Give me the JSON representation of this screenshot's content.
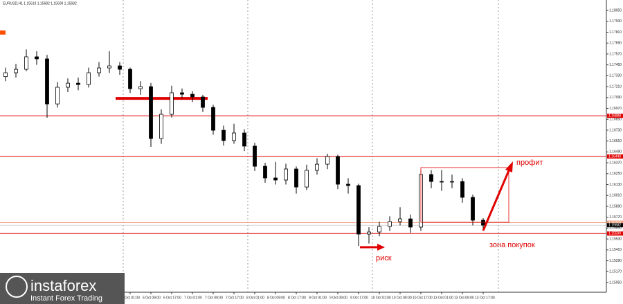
{
  "chart_data": {
    "type": "candlestick",
    "title": "EURUSD,H1  1.15619 1.15682 1.15609 1.15682",
    "candles": [
      [
        1.1732,
        1.1742,
        1.1727,
        1.17363
      ],
      [
        1.17363,
        1.1746,
        1.1731,
        1.17401
      ],
      [
        1.17401,
        1.1762,
        1.1738,
        1.17539
      ],
      [
        1.17539,
        1.176,
        1.1745,
        1.17516
      ],
      [
        1.17516,
        1.1756,
        1.16867,
        1.17019
      ],
      [
        1.17019,
        1.1726,
        1.1698,
        1.17203
      ],
      [
        1.17203,
        1.173,
        1.1715,
        1.17248
      ],
      [
        1.17248,
        1.1731,
        1.1717,
        1.17233
      ],
      [
        1.17233,
        1.1742,
        1.172,
        1.17363
      ],
      [
        1.17363,
        1.1748,
        1.1732,
        1.17416
      ],
      [
        1.17416,
        1.176,
        1.1736,
        1.17439
      ],
      [
        1.17439,
        1.1748,
        1.1734,
        1.17401
      ],
      [
        1.17401,
        1.1742,
        1.1714,
        1.17187
      ],
      [
        1.17187,
        1.1727,
        1.1712,
        1.1721
      ],
      [
        1.1721,
        1.1725,
        1.16546,
        1.16638
      ],
      [
        1.16638,
        1.1696,
        1.1658,
        1.16905
      ],
      [
        1.16905,
        1.1722,
        1.1687,
        1.17142
      ],
      [
        1.17142,
        1.1719,
        1.1708,
        1.17126
      ],
      [
        1.17126,
        1.1716,
        1.1704,
        1.17096
      ],
      [
        1.17096,
        1.1712,
        1.1693,
        1.16981
      ],
      [
        1.16981,
        1.1701,
        1.1668,
        1.16729
      ],
      [
        1.16729,
        1.1678,
        1.1656,
        1.16615
      ],
      [
        1.16615,
        1.168,
        1.1658,
        1.16699
      ],
      [
        1.16699,
        1.1674,
        1.165,
        1.16554
      ],
      [
        1.16554,
        1.1659,
        1.1628,
        1.16332
      ],
      [
        1.16332,
        1.1637,
        1.1615,
        1.16203
      ],
      [
        1.16203,
        1.1638,
        1.1613,
        1.1618
      ],
      [
        1.1618,
        1.1636,
        1.1613,
        1.16302
      ],
      [
        1.16302,
        1.1633,
        1.1603,
        1.16103
      ],
      [
        1.16103,
        1.1635,
        1.1607,
        1.16287
      ],
      [
        1.16287,
        1.1642,
        1.1624,
        1.16355
      ],
      [
        1.16355,
        1.1647,
        1.163,
        1.16439
      ],
      [
        1.16439,
        1.1646,
        1.1608,
        1.16134
      ],
      [
        1.16134,
        1.162,
        1.1603,
        1.16119
      ],
      [
        1.16119,
        1.1614,
        1.15454,
        1.15584
      ],
      [
        1.15584,
        1.1566,
        1.1548,
        1.15607
      ],
      [
        1.15607,
        1.1572,
        1.1556,
        1.15668
      ],
      [
        1.15668,
        1.1578,
        1.1562,
        1.15722
      ],
      [
        1.15722,
        1.1588,
        1.1568,
        1.15752
      ],
      [
        1.15752,
        1.158,
        1.156,
        1.15661
      ],
      [
        1.15661,
        1.16294,
        1.1562,
        1.16241
      ],
      [
        1.16241,
        1.1629,
        1.1609,
        1.16164
      ],
      [
        1.16164,
        1.1629,
        1.1606,
        1.16157
      ],
      [
        1.16157,
        1.1624,
        1.1609,
        1.16164
      ],
      [
        1.16164,
        1.162,
        1.1593,
        1.15989
      ],
      [
        1.15989,
        1.1602,
        1.1568,
        1.15737
      ],
      [
        1.15737,
        1.1576,
        1.1563,
        1.15682
      ]
    ],
    "categories": [
      "6 Oct 01:00",
      "6 Oct 09:00",
      "6 Oct 17:00",
      "7 Oct 01:00",
      "7 Oct 09:00",
      "7 Oct 17:00",
      "8 Oct 01:00",
      "8 Oct 09:00",
      "8 Oct 17:00",
      "9 Oct 01:00",
      "9 Oct 09:00",
      "9 Oct 17:00",
      "10 Oct 01:00",
      "10 Oct 09:00",
      "10 Oct 17:00",
      "13 Oct 01:00",
      "13 Oct 09:00",
      "13 Oct 17:00"
    ],
    "ylim": [
      1.14882,
      1.18165
    ],
    "yticks": [
      {
        "value": 1.1805,
        "label": "1.18050"
      },
      {
        "value": 1.1793,
        "label": "1.17930"
      },
      {
        "value": 1.1781,
        "label": "1.17810"
      },
      {
        "value": 1.1769,
        "label": "1.17690"
      },
      {
        "value": 1.1757,
        "label": "1.17570"
      },
      {
        "value": 1.1745,
        "label": "1.17450"
      },
      {
        "value": 1.1733,
        "label": "1.17330"
      },
      {
        "value": 1.1721,
        "label": "1.17210"
      },
      {
        "value": 1.1709,
        "label": "1.17090"
      },
      {
        "value": 1.1697,
        "label": "1.16970"
      },
      {
        "value": 1.1685,
        "label": "1.16850"
      },
      {
        "value": 1.1673,
        "label": "1.16730"
      },
      {
        "value": 1.1661,
        "label": "1.16610"
      },
      {
        "value": 1.1649,
        "label": "1.16490"
      },
      {
        "value": 1.1637,
        "label": "1.16370"
      },
      {
        "value": 1.1625,
        "label": "1.16250"
      },
      {
        "value": 1.1613,
        "label": "1.16130"
      },
      {
        "value": 1.1601,
        "label": "1.16010"
      },
      {
        "value": 1.1589,
        "label": "1.15890"
      },
      {
        "value": 1.1577,
        "label": "1.15770"
      },
      {
        "value": 1.1565,
        "label": "1.15650"
      },
      {
        "value": 1.1553,
        "label": "1.15530"
      },
      {
        "value": 1.1541,
        "label": "1.15410"
      },
      {
        "value": 1.1529,
        "label": "1.15290"
      },
      {
        "value": 1.1517,
        "label": "1.15170"
      },
      {
        "value": 1.1505,
        "label": "1.15050"
      }
    ],
    "levels": [
      {
        "value": 1.16888,
        "label": "1.16888",
        "color": "#e00000"
      },
      {
        "value": 1.1644,
        "label": "1.16440",
        "color": "#e00000"
      },
      {
        "value": 1.1571,
        "label": "1.15710",
        "color": "#f0a080"
      },
      {
        "value": 1.1559,
        "label": "1.15590",
        "color": "#e00000"
      }
    ],
    "current_price": {
      "value": 1.15682,
      "label": "1.15682"
    },
    "resistance": 1.1708,
    "annotations": [
      "профит",
      "риск",
      "зона покупок"
    ],
    "logo": {
      "brand": "instaforex",
      "tagline": "Instant Forex Trading"
    }
  }
}
